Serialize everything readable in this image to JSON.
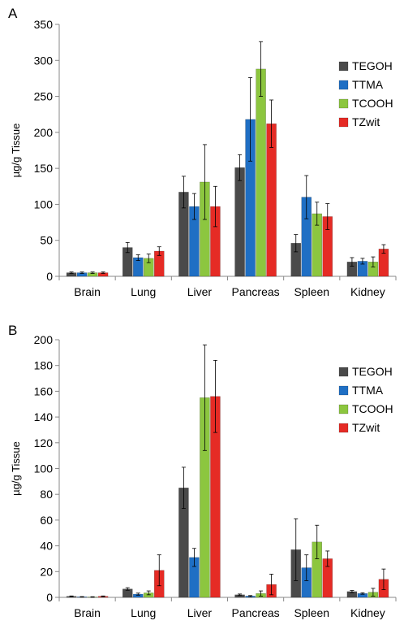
{
  "chart_data": [
    {
      "type": "bar",
      "panel_label": "A",
      "ylabel": "µg/g Tissue",
      "ylim": [
        0,
        350
      ],
      "yticks": [
        0,
        50,
        100,
        150,
        200,
        250,
        300,
        350
      ],
      "grid": false,
      "legend_position": "top-right",
      "categories": [
        "Brain",
        "Lung",
        "Liver",
        "Pancreas",
        "Spleen",
        "Kidney"
      ],
      "series": [
        {
          "name": "TEGOH",
          "color": "#4a4a4a",
          "values": [
            5,
            40,
            117,
            151,
            46,
            20
          ],
          "errors": [
            1,
            7,
            22,
            18,
            12,
            6
          ]
        },
        {
          "name": "TTMA",
          "color": "#1f6fc4",
          "values": [
            5,
            26,
            97,
            218,
            110,
            21
          ],
          "errors": [
            1,
            4,
            18,
            58,
            30,
            4
          ]
        },
        {
          "name": "TCOOH",
          "color": "#8cc63f",
          "values": [
            5,
            25,
            131,
            288,
            87,
            20
          ],
          "errors": [
            1,
            6,
            52,
            38,
            16,
            7
          ]
        },
        {
          "name": "TZwit",
          "color": "#e52b25",
          "values": [
            5,
            35,
            97,
            212,
            83,
            38
          ],
          "errors": [
            1,
            6,
            28,
            33,
            18,
            6
          ]
        }
      ]
    },
    {
      "type": "bar",
      "panel_label": "B",
      "ylabel": "µg/g Tissue",
      "ylim": [
        0,
        200
      ],
      "yticks": [
        0,
        20,
        40,
        60,
        80,
        100,
        120,
        140,
        160,
        180,
        200
      ],
      "grid": false,
      "legend_position": "top-right",
      "categories": [
        "Brain",
        "Lung",
        "Liver",
        "Pancreas",
        "Spleen",
        "Kidney"
      ],
      "series": [
        {
          "name": "TEGOH",
          "color": "#4a4a4a",
          "values": [
            0.8,
            6.5,
            85,
            2,
            37,
            4.5
          ],
          "errors": [
            0.3,
            1,
            16,
            0.6,
            24,
            0.8
          ]
        },
        {
          "name": "TTMA",
          "color": "#1f6fc4",
          "values": [
            0.4,
            2.5,
            31,
            1,
            23,
            3
          ],
          "errors": [
            0.2,
            0.8,
            7,
            0.4,
            10,
            0.6
          ]
        },
        {
          "name": "TCOOH",
          "color": "#8cc63f",
          "values": [
            0.3,
            3.5,
            155,
            3,
            43,
            4
          ],
          "errors": [
            0.2,
            1.5,
            41,
            2,
            13,
            3
          ]
        },
        {
          "name": "TZwit",
          "color": "#e52b25",
          "values": [
            0.8,
            21,
            156,
            10,
            30,
            14
          ],
          "errors": [
            0.3,
            12,
            28,
            8,
            6,
            8
          ]
        }
      ]
    }
  ]
}
